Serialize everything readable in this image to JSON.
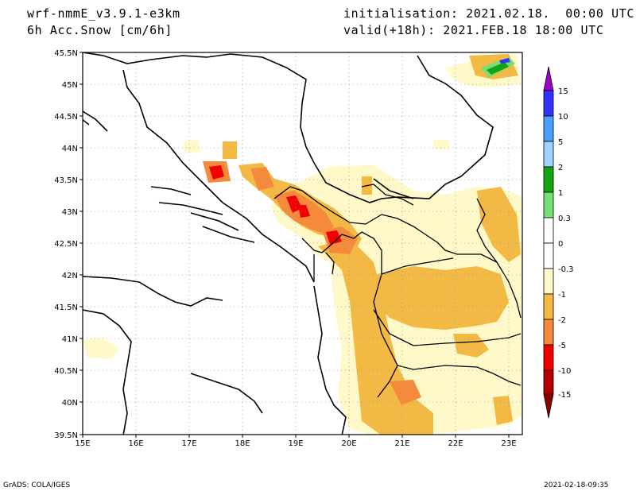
{
  "header": {
    "model": "wrf-nmmE_v3.9.1-e3km",
    "variable": "6h Acc.Snow [cm/6h]",
    "init": "initialisation: 2021.02.18.  00:00 UTC",
    "valid": "valid(+18h): 2021.FEB.18 18:00 UTC"
  },
  "map": {
    "lon_labels": [
      "15E",
      "16E",
      "17E",
      "18E",
      "19E",
      "20E",
      "21E",
      "22E",
      "23E"
    ],
    "lat_labels": [
      "45.5N",
      "45N",
      "44.5N",
      "44N",
      "43.5N",
      "43N",
      "42.5N",
      "42N",
      "41.5N",
      "41N",
      "40.5N",
      "40N",
      "39.5N"
    ],
    "lon_range": [
      15,
      23.25
    ],
    "lat_range": [
      39.5,
      45.5
    ]
  },
  "colorbar": {
    "labels": [
      "15",
      "10",
      "5",
      "2",
      "1",
      "0.3",
      "0",
      "-0.3",
      "-1",
      "-2",
      "-5",
      "-10",
      "-15"
    ],
    "colors": [
      "#a000c8",
      "#3232ff",
      "#4aa0ff",
      "#a0d2ff",
      "#13a313",
      "#75e075",
      "#ffffff",
      "#ffffff",
      "#fff8c8",
      "#f2b944",
      "#f68a3c",
      "#f00000",
      "#b40000",
      "#8c0000"
    ]
  },
  "footer": {
    "left": "GrADS: COLA/IGES",
    "right": "2021-02-18-09:35"
  }
}
